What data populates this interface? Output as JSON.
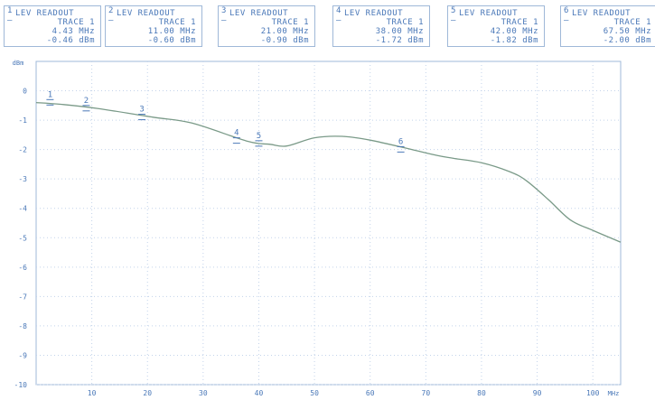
{
  "readouts": [
    {
      "number": "1",
      "title": "LEV READOUT",
      "trace": "TRACE 1",
      "freq": "4.43 MHz",
      "level": "-0.46 dBm"
    },
    {
      "number": "2",
      "title": "LEV READOUT",
      "trace": "TRACE 1",
      "freq": "11.00 MHz",
      "level": "-0.60 dBm"
    },
    {
      "number": "3",
      "title": "LEV READOUT",
      "trace": "TRACE 1",
      "freq": "21.00 MHz",
      "level": "-0.90 dBm"
    },
    {
      "number": "4",
      "title": "LEV READOUT",
      "trace": "TRACE 1",
      "freq": "38.00 MHz",
      "level": "-1.72 dBm"
    },
    {
      "number": "5",
      "title": "LEV READOUT",
      "trace": "TRACE 1",
      "freq": "42.00 MHz",
      "level": "-1.82 dBm"
    },
    {
      "number": "6",
      "title": "LEV READOUT",
      "trace": "TRACE 1",
      "freq": "67.50 MHz",
      "level": "-2.00 dBm"
    }
  ],
  "chart_data": {
    "type": "line",
    "ylabel": "dBm",
    "x_unit": "MHz",
    "xlim": [
      0,
      105
    ],
    "ylim": [
      -10,
      1
    ],
    "x_ticks": [
      "10",
      "20",
      "30",
      "40",
      "50",
      "60",
      "70",
      "80",
      "90",
      "100"
    ],
    "y_ticks": [
      "0",
      "-1",
      "-2",
      "-3",
      "-4",
      "-5",
      "-6",
      "-7",
      "-8",
      "-9",
      "-10"
    ],
    "grid": true,
    "series": [
      {
        "color": "#7a9a88",
        "x": [
          0,
          4.43,
          11,
          21,
          28,
          38,
          42,
          45,
          50,
          55,
          60,
          67.5,
          72,
          75,
          80,
          85,
          88,
          92,
          96,
          100,
          105
        ],
        "y": [
          -0.4,
          -0.46,
          -0.6,
          -0.9,
          -1.1,
          -1.72,
          -1.82,
          -1.88,
          -1.6,
          -1.55,
          -1.68,
          -2.0,
          -2.2,
          -2.3,
          -2.45,
          -2.75,
          -3.05,
          -3.7,
          -4.4,
          -4.75,
          -5.15
        ]
      }
    ],
    "markers": [
      {
        "label": "1",
        "x": 2.5,
        "y": -0.3
      },
      {
        "label": "2",
        "x": 9,
        "y": -0.5
      },
      {
        "label": "3",
        "x": 19,
        "y": -0.8
      },
      {
        "label": "4",
        "x": 36,
        "y": -1.6
      },
      {
        "label": "5",
        "x": 40,
        "y": -1.7
      },
      {
        "label": "6",
        "x": 65.5,
        "y": -1.9
      }
    ]
  }
}
